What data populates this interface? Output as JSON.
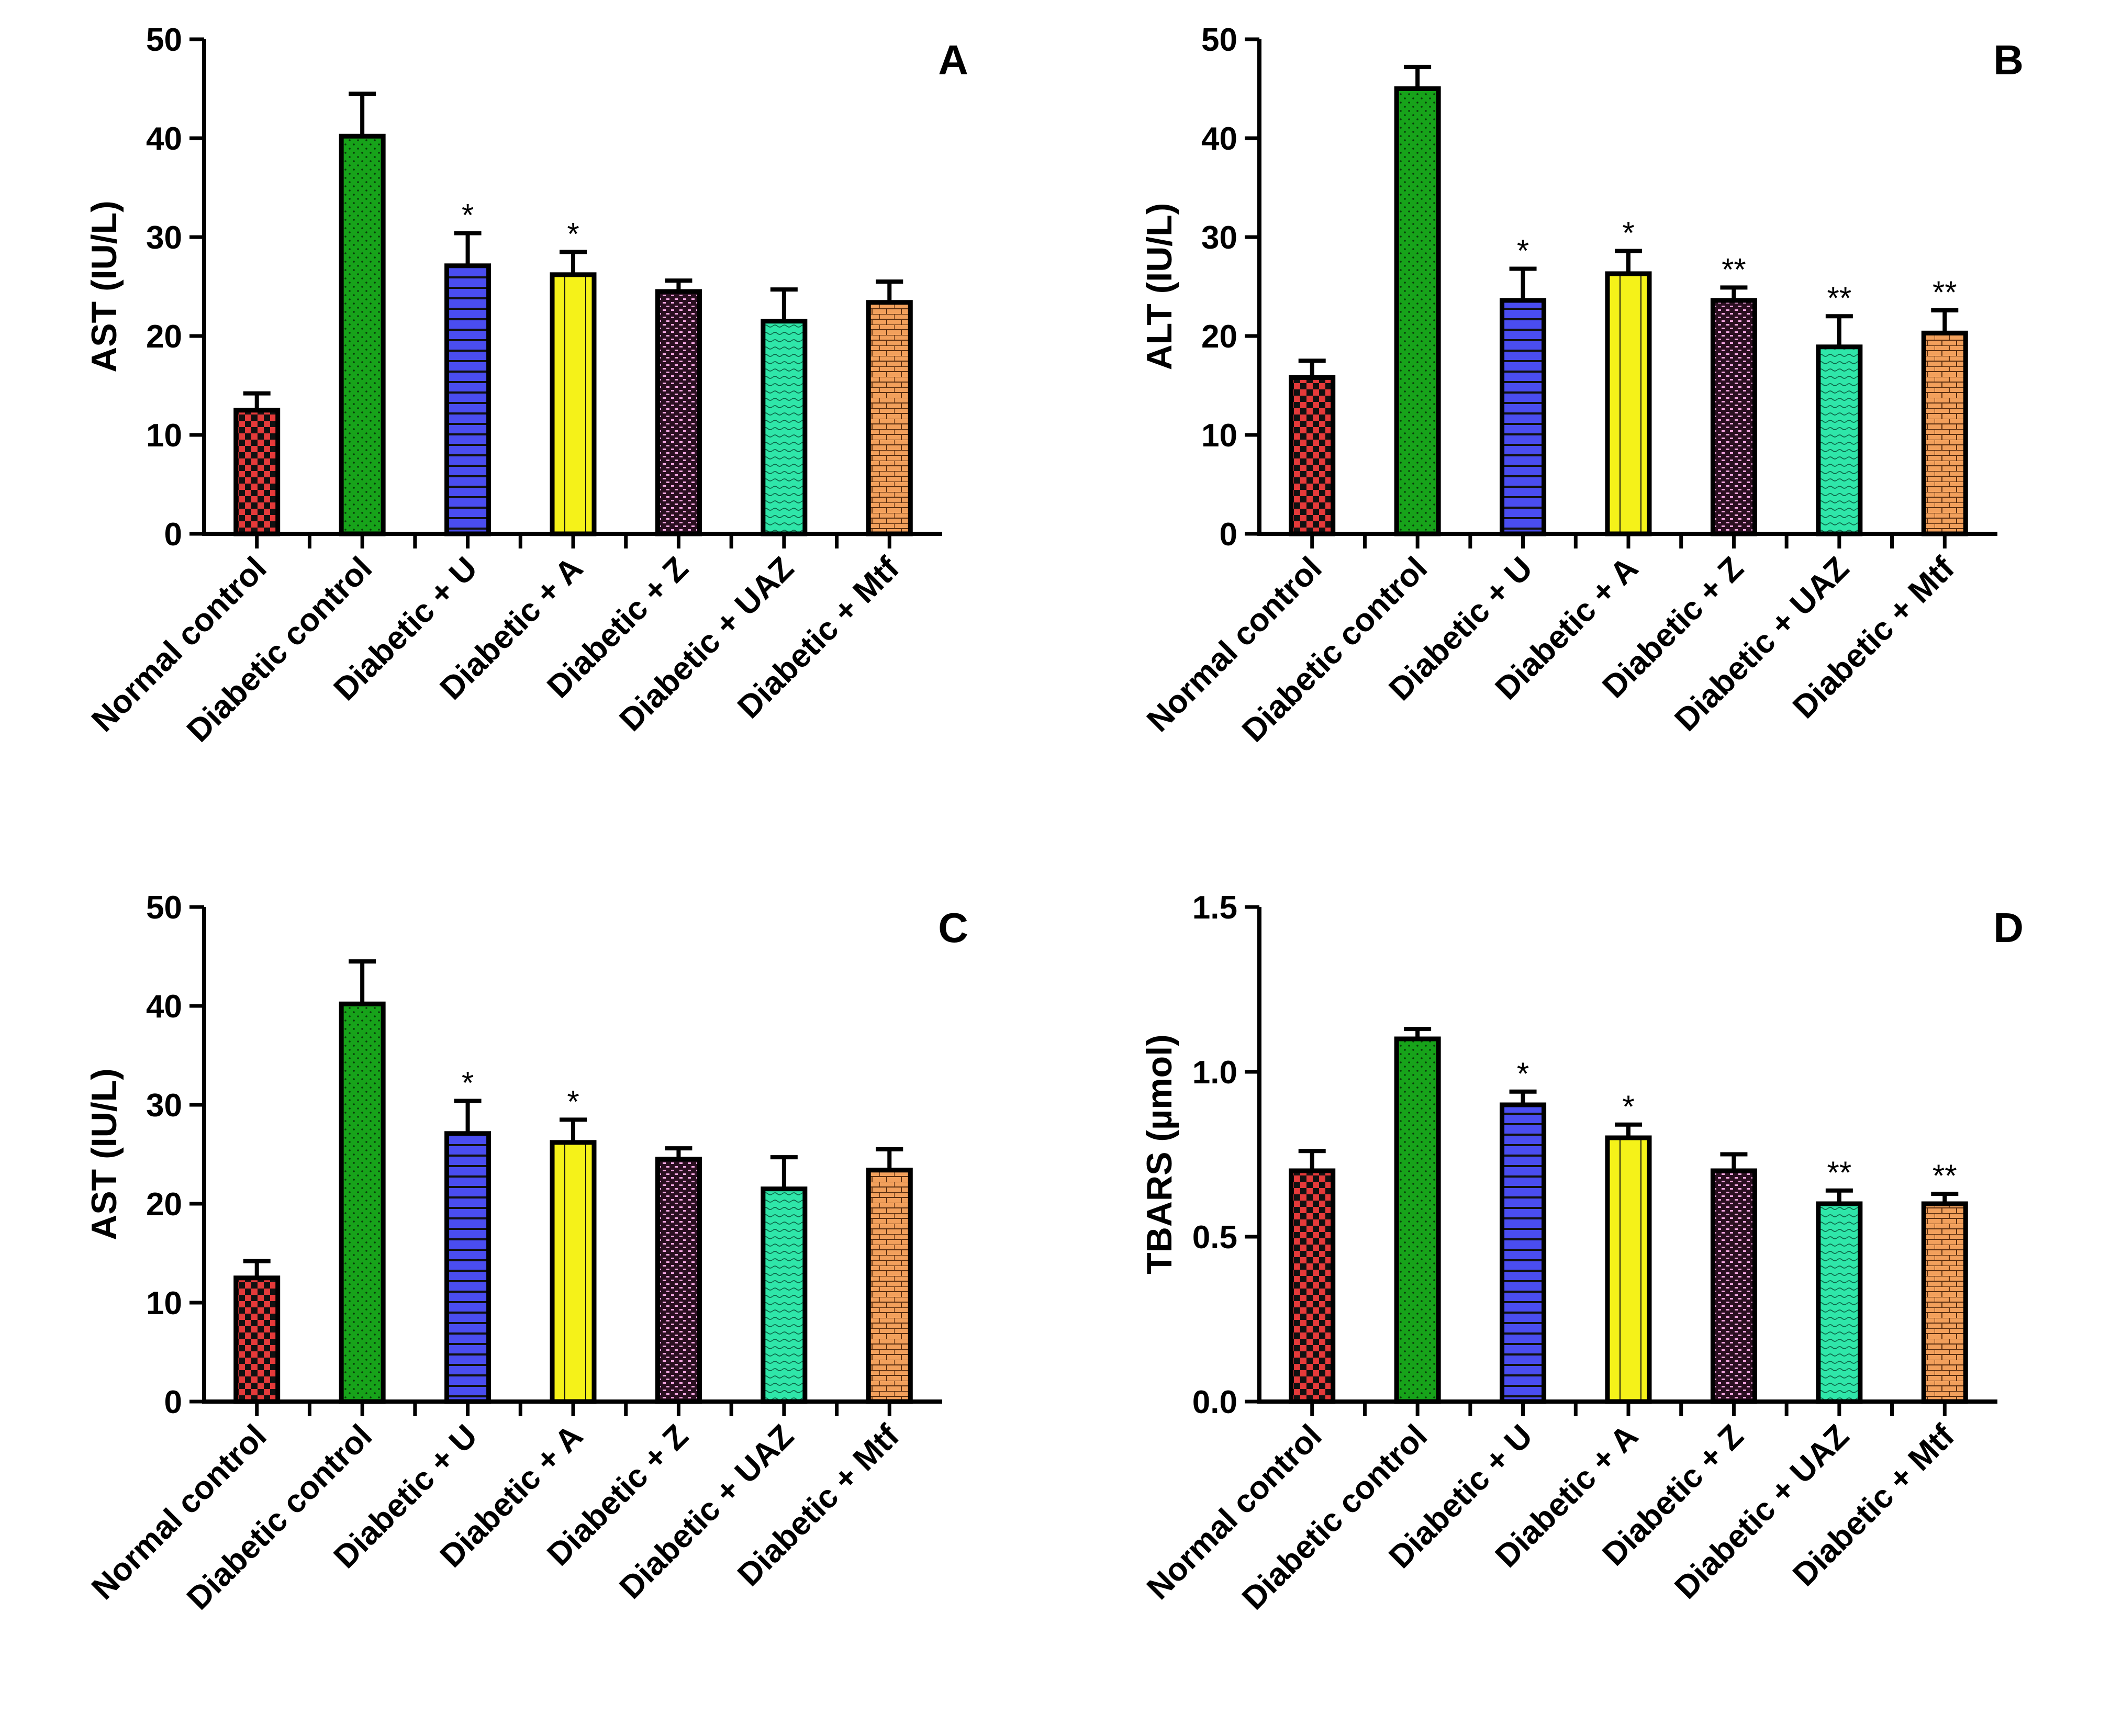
{
  "chart_data": [
    {
      "type": "bar",
      "panel_label": "A",
      "ylabel": "AST (IU/L)",
      "xlabel": "",
      "ylim": [
        0,
        50
      ],
      "yticks": [
        "0",
        "10",
        "20",
        "30",
        "40",
        "50"
      ],
      "categories": [
        "Normal control",
        "Diabetic control",
        "Diabetic + U",
        "Diabetic + A",
        "Diabetic + Z",
        "Diabetic + UAZ",
        "Diabetic + Mtf"
      ],
      "values": [
        12.5,
        40.2,
        27.1,
        26.2,
        24.5,
        21.5,
        23.4
      ],
      "errors": [
        1.7,
        4.3,
        3.3,
        2.3,
        1.1,
        3.2,
        2.1
      ],
      "significance": [
        "",
        "",
        "*",
        "*",
        "",
        "",
        ""
      ]
    },
    {
      "type": "bar",
      "panel_label": "B",
      "ylabel": "ALT (IU/L)",
      "xlabel": "",
      "ylim": [
        0,
        50
      ],
      "yticks": [
        "0",
        "10",
        "20",
        "30",
        "40",
        "50"
      ],
      "categories": [
        "Normal control",
        "Diabetic control",
        "Diabetic + U",
        "Diabetic + A",
        "Diabetic + Z",
        "Diabetic + UAZ",
        "Diabetic + Mtf"
      ],
      "values": [
        15.8,
        45.0,
        23.6,
        26.3,
        23.6,
        18.9,
        20.3
      ],
      "errors": [
        1.7,
        2.2,
        3.2,
        2.3,
        1.3,
        3.1,
        2.3
      ],
      "significance": [
        "",
        "",
        "*",
        "*",
        "**",
        "**",
        "**"
      ]
    },
    {
      "type": "bar",
      "panel_label": "C",
      "ylabel": "AST (IU/L)",
      "xlabel": "",
      "ylim": [
        0,
        50
      ],
      "yticks": [
        "0",
        "10",
        "20",
        "30",
        "40",
        "50"
      ],
      "categories": [
        "Normal control",
        "Diabetic control",
        "Diabetic + U",
        "Diabetic + A",
        "Diabetic + Z",
        "Diabetic + UAZ",
        "Diabetic + Mtf"
      ],
      "values": [
        12.5,
        40.2,
        27.1,
        26.2,
        24.5,
        21.5,
        23.4
      ],
      "errors": [
        1.7,
        4.3,
        3.3,
        2.3,
        1.1,
        3.2,
        2.1
      ],
      "significance": [
        "",
        "",
        "*",
        "*",
        "",
        "",
        ""
      ]
    },
    {
      "type": "bar",
      "panel_label": "D",
      "ylabel": "TBARS (µmol)",
      "xlabel": "",
      "ylim": [
        0,
        1.5
      ],
      "yticks": [
        "0.0",
        "0.5",
        "1.0",
        "1.5"
      ],
      "categories": [
        "Normal control",
        "Diabetic control",
        "Diabetic + U",
        "Diabetic + A",
        "Diabetic + Z",
        "Diabetic + UAZ",
        "Diabetic + Mtf"
      ],
      "values": [
        0.7,
        1.1,
        0.9,
        0.8,
        0.7,
        0.6,
        0.6
      ],
      "errors": [
        0.06,
        0.03,
        0.04,
        0.04,
        0.05,
        0.04,
        0.03
      ],
      "significance": [
        "",
        "",
        "*",
        "*",
        "",
        "**",
        "**"
      ]
    }
  ],
  "series_style": {
    "colors": [
      "#e53a3a",
      "#17a31a",
      "#4a4df0",
      "#f5f219",
      "#a8267a",
      "#2fe6a9",
      "#f2a05c"
    ],
    "patterns": [
      "checker",
      "dots",
      "hlines",
      "vlines",
      "pink-dash",
      "wave",
      "brick"
    ]
  }
}
